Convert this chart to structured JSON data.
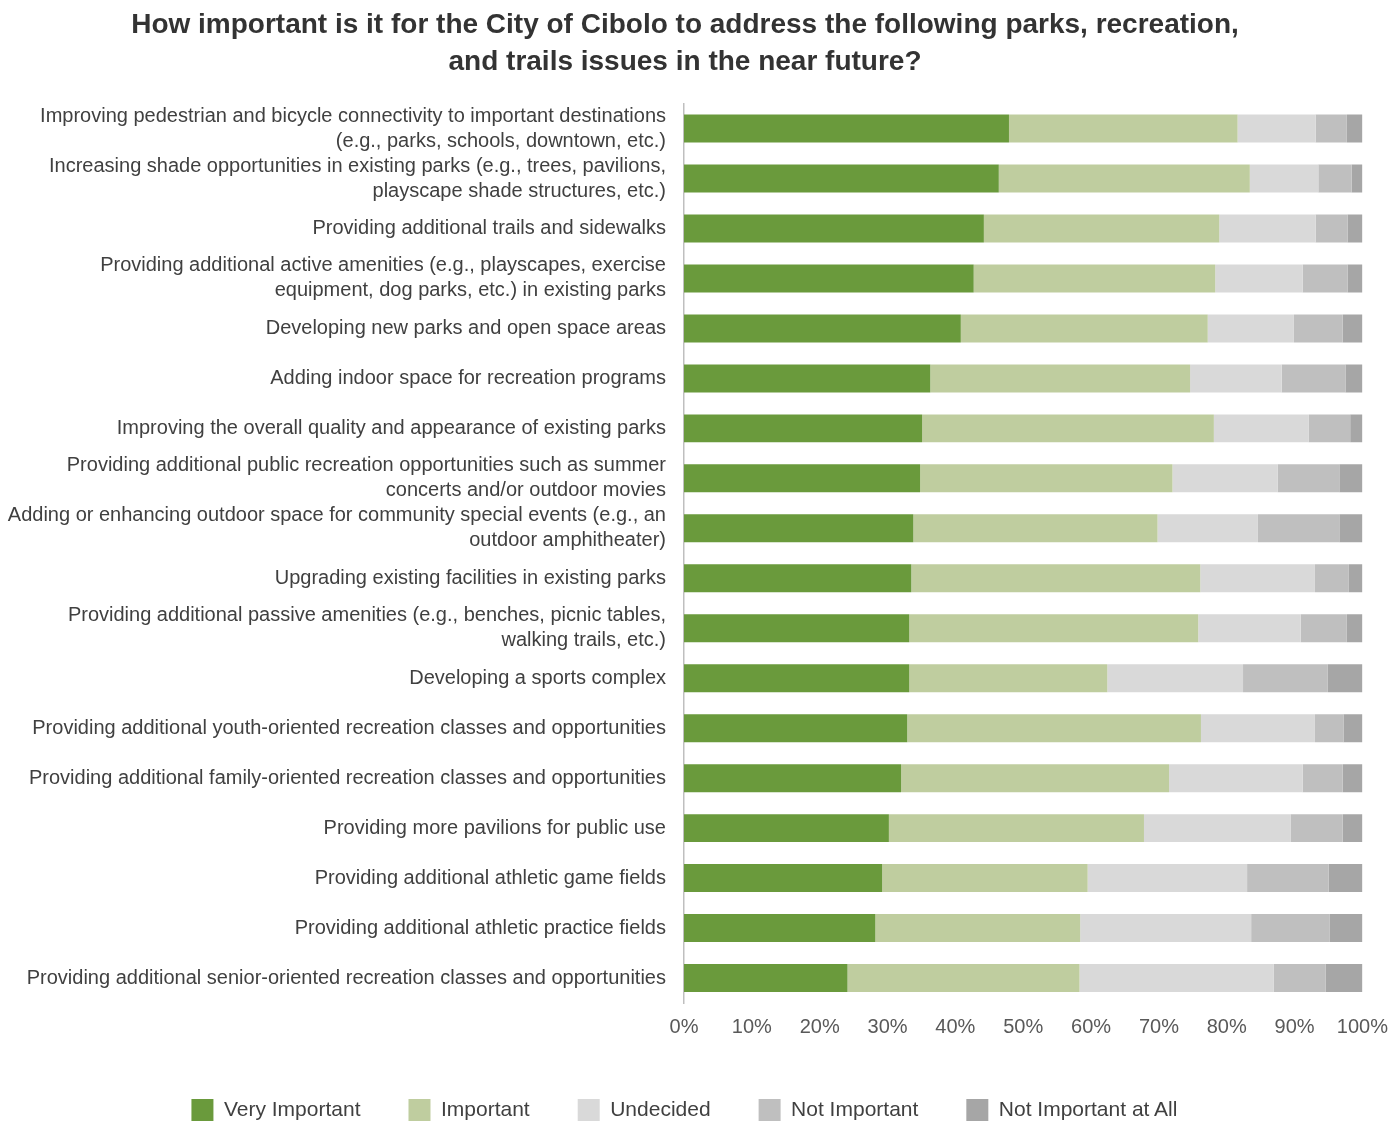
{
  "chart_data": {
    "type": "bar",
    "orientation": "horizontal",
    "stacked": true,
    "title": "How important is it for the City of Cibolo to address the following parks, recreation, and trails issues in the near future?",
    "categories": [
      "Improving pedestrian and bicycle connectivity to important destinations (e.g., parks, schools, downtown, etc.)",
      "Increasing shade opportunities in existing parks (e.g., trees, pavilions, playscape shade structures, etc.)",
      "Providing additional trails and sidewalks",
      "Providing additional active amenities (e.g., playscapes, exercise equipment, dog parks, etc.) in existing parks",
      "Developing new parks and open space areas",
      "Adding indoor space for recreation programs",
      "Improving the overall quality and appearance of existing parks",
      "Providing additional public recreation opportunities such as summer concerts and/or outdoor movies",
      "Adding or enhancing outdoor space for community special events (e.g., an outdoor amphitheater)",
      "Upgrading existing facilities in existing parks",
      "Providing additional passive amenities (e.g., benches, picnic tables, walking trails, etc.)",
      "Developing a sports complex",
      "Providing additional youth-oriented recreation classes and opportunities",
      "Providing additional family-oriented recreation classes and opportunities",
      "Providing more pavilions for public use",
      "Providing additional athletic game fields",
      "Providing additional athletic practice fields",
      "Providing additional senior-oriented recreation classes and opportunities"
    ],
    "series": [
      {
        "name": "Very Important",
        "color": "#6a9a3c",
        "values": [
          47.9,
          46.4,
          44.2,
          42.7,
          40.8,
          36.3,
          35.1,
          34.8,
          33.8,
          33.5,
          33.2,
          33.2,
          32.9,
          32.0,
          30.2,
          29.2,
          28.2,
          24.1
        ]
      },
      {
        "name": "Important",
        "color": "#bfcd9f",
        "values": [
          33.7,
          37.0,
          34.7,
          35.6,
          36.4,
          38.3,
          43.0,
          37.2,
          36.0,
          42.6,
          42.6,
          29.2,
          43.3,
          39.5,
          37.6,
          30.3,
          30.2,
          34.2
        ]
      },
      {
        "name": "Undecided",
        "color": "#d9d9d9",
        "values": [
          11.5,
          10.1,
          14.2,
          12.9,
          12.7,
          13.5,
          14.0,
          15.5,
          14.8,
          16.9,
          15.1,
          20.0,
          16.8,
          19.7,
          21.6,
          23.5,
          25.2,
          28.6
        ]
      },
      {
        "name": "Not Important",
        "color": "#bfbfbf",
        "values": [
          4.6,
          4.9,
          4.7,
          6.6,
          7.2,
          9.4,
          6.1,
          9.1,
          12.0,
          5.0,
          6.8,
          12.5,
          4.2,
          5.9,
          7.7,
          12.0,
          11.6,
          7.7
        ]
      },
      {
        "name": "Not Important at All",
        "color": "#a6a6a6",
        "values": [
          2.3,
          1.6,
          2.2,
          2.2,
          2.9,
          2.5,
          1.8,
          3.4,
          3.4,
          2.0,
          2.3,
          5.1,
          2.8,
          2.9,
          2.9,
          5.0,
          4.8,
          5.4
        ]
      }
    ],
    "xlim": [
      0,
      100
    ],
    "xticks": [
      {
        "value": 0,
        "label": "0%"
      },
      {
        "value": 10,
        "label": "10%"
      },
      {
        "value": 20,
        "label": "20%"
      },
      {
        "value": 30,
        "label": "30%"
      },
      {
        "value": 40,
        "label": "40%"
      },
      {
        "value": 50,
        "label": "50%"
      },
      {
        "value": 60,
        "label": "60%"
      },
      {
        "value": 70,
        "label": "70%"
      },
      {
        "value": 80,
        "label": "80%"
      },
      {
        "value": 90,
        "label": "90%"
      },
      {
        "value": 100,
        "label": "100%"
      }
    ],
    "grid": false,
    "legend": "bottom"
  }
}
